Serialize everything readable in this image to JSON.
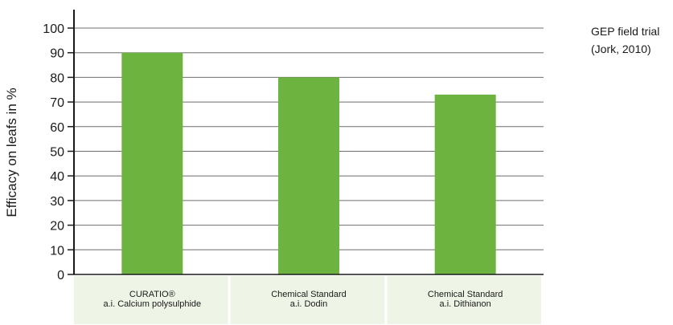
{
  "note": {
    "line1": "GEP field trial",
    "line2": "(Jork, 2010)"
  },
  "colors": {
    "bar": "#6db33f",
    "category_band": "#eef4e6",
    "gridline": "#6e6e6e",
    "axis": "#1a1a1a"
  },
  "chart_data": {
    "type": "bar",
    "title": "",
    "xlabel": "",
    "ylabel": "Efficacy on leafs in %",
    "ylim": [
      0,
      100
    ],
    "yticks": [
      0,
      10,
      20,
      30,
      40,
      50,
      60,
      70,
      80,
      90,
      100
    ],
    "grid": true,
    "categories": [
      [
        "CURATIO®",
        "a.i. Calcium polysulphide"
      ],
      [
        "Chemical Standard",
        "a.i. Dodin"
      ],
      [
        "Chemical Standard",
        "a.i. Dithianon"
      ]
    ],
    "values": [
      90,
      80,
      73
    ]
  }
}
